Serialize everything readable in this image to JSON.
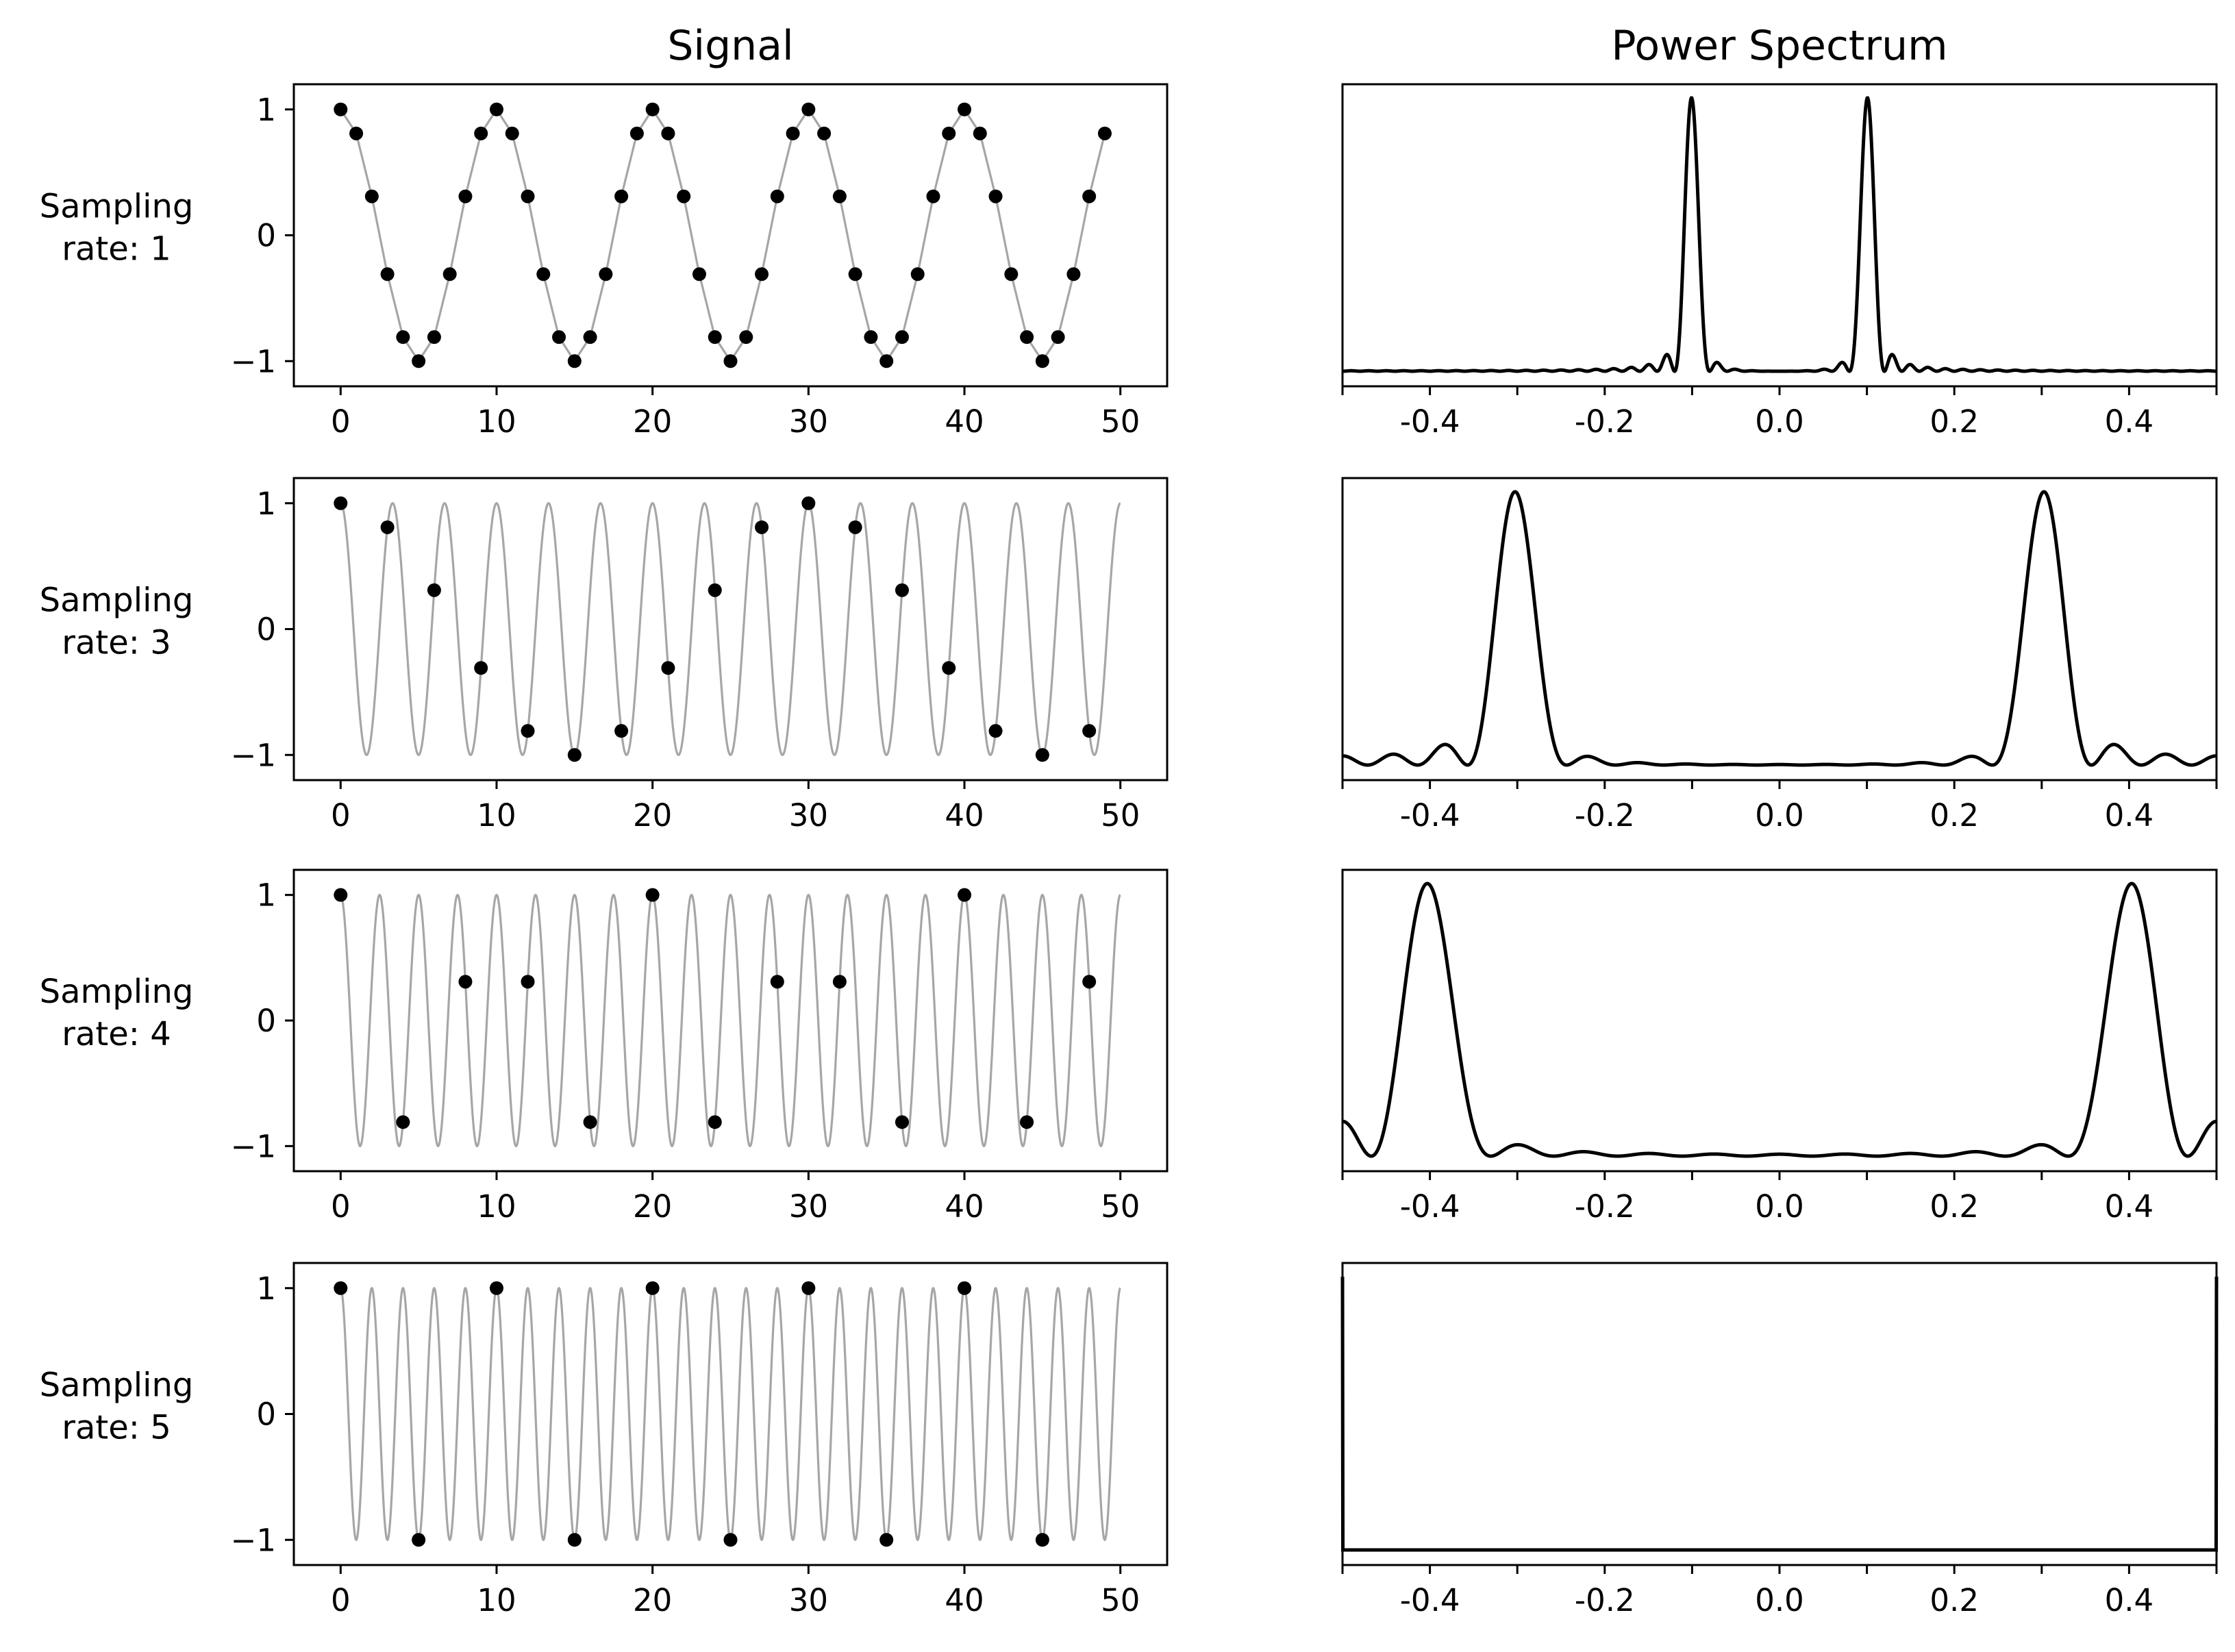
{
  "chart_data": [
    {
      "type": "line",
      "panel": "signal",
      "title": "Signal",
      "row_label": [
        "Sampling",
        "rate: 1"
      ],
      "sampling_rate": 1,
      "xlim": [
        -3,
        53
      ],
      "ylim": [
        -1.2,
        1.2
      ],
      "xticks": [
        0,
        10,
        20,
        30,
        40,
        50
      ],
      "yticks": [
        -1,
        0,
        1
      ],
      "continuous_signal": {
        "function": "cos(2*pi*0.1*t)",
        "t_range": [
          0,
          50
        ],
        "color": "#a6a6a6"
      },
      "samples": {
        "t": [
          0,
          1,
          2,
          3,
          4,
          5,
          6,
          7,
          8,
          9,
          10,
          11,
          12,
          13,
          14,
          15,
          16,
          17,
          18,
          19,
          20,
          21,
          22,
          23,
          24,
          25,
          26,
          27,
          28,
          29,
          30,
          31,
          32,
          33,
          34,
          35,
          36,
          37,
          38,
          39,
          40,
          41,
          42,
          43,
          44,
          45,
          46,
          47,
          48,
          49
        ],
        "color": "#000000"
      }
    },
    {
      "type": "line",
      "panel": "spectrum",
      "title": "Power Spectrum",
      "sampling_rate": 1,
      "xlim": [
        -0.5,
        0.5
      ],
      "xticks": [
        -0.4,
        -0.2,
        0.0,
        0.2,
        0.4
      ],
      "xtick_labels": [
        "-0.4",
        "-0.2",
        "0.0",
        "0.2",
        "0.4"
      ],
      "peaks_at": [
        -0.1,
        0.1
      ],
      "color": "#000000"
    },
    {
      "type": "line",
      "panel": "signal",
      "row_label": [
        "Sampling",
        "rate: 3"
      ],
      "sampling_rate": 3,
      "xlim": [
        -3,
        53
      ],
      "ylim": [
        -1.2,
        1.2
      ],
      "xticks": [
        0,
        10,
        20,
        30,
        40,
        50
      ],
      "yticks": [
        -1,
        0,
        1
      ],
      "continuous_signal": {
        "function": "cos(2*pi*0.3*t)",
        "t_range": [
          0,
          50
        ],
        "color": "#a6a6a6"
      },
      "samples": {
        "t": [
          0,
          3,
          6,
          9,
          12,
          15,
          18,
          21,
          24,
          27,
          30,
          33,
          36,
          39,
          42,
          45,
          48
        ],
        "color": "#000000"
      }
    },
    {
      "type": "line",
      "panel": "spectrum",
      "sampling_rate": 3,
      "xlim": [
        -0.5,
        0.5
      ],
      "xticks": [
        -0.4,
        -0.2,
        0.0,
        0.2,
        0.4
      ],
      "xtick_labels": [
        "-0.4",
        "-0.2",
        "0.0",
        "0.2",
        "0.4"
      ],
      "peaks_at": [
        -0.3,
        0.3
      ],
      "color": "#000000"
    },
    {
      "type": "line",
      "panel": "signal",
      "row_label": [
        "Sampling",
        "rate: 4"
      ],
      "sampling_rate": 4,
      "xlim": [
        -3,
        53
      ],
      "ylim": [
        -1.2,
        1.2
      ],
      "xticks": [
        0,
        10,
        20,
        30,
        40,
        50
      ],
      "yticks": [
        -1,
        0,
        1
      ],
      "continuous_signal": {
        "function": "cos(2*pi*0.4*t)",
        "t_range": [
          0,
          50
        ],
        "color": "#a6a6a6"
      },
      "samples": {
        "t": [
          0,
          4,
          8,
          12,
          16,
          20,
          24,
          28,
          32,
          36,
          40,
          44,
          48
        ],
        "color": "#000000"
      }
    },
    {
      "type": "line",
      "panel": "spectrum",
      "sampling_rate": 4,
      "xlim": [
        -0.5,
        0.5
      ],
      "xticks": [
        -0.4,
        -0.2,
        0.0,
        0.2,
        0.4
      ],
      "xtick_labels": [
        "-0.4",
        "-0.2",
        "0.0",
        "0.2",
        "0.4"
      ],
      "peaks_at": [
        -0.4,
        0.4
      ],
      "color": "#000000"
    },
    {
      "type": "line",
      "panel": "signal",
      "row_label": [
        "Sampling",
        "rate: 5"
      ],
      "sampling_rate": 5,
      "xlim": [
        -3,
        53
      ],
      "ylim": [
        -1.2,
        1.2
      ],
      "xticks": [
        0,
        10,
        20,
        30,
        40,
        50
      ],
      "yticks": [
        -1,
        0,
        1
      ],
      "continuous_signal": {
        "function": "cos(2*pi*0.5*t)",
        "t_range": [
          0,
          50
        ],
        "color": "#a6a6a6"
      },
      "samples": {
        "t": [
          0,
          5,
          10,
          15,
          20,
          25,
          30,
          35,
          40,
          45
        ],
        "color": "#000000"
      }
    },
    {
      "type": "line",
      "panel": "spectrum",
      "sampling_rate": 5,
      "xlim": [
        -0.5,
        0.5
      ],
      "xticks": [
        -0.4,
        -0.2,
        0.0,
        0.2,
        0.4
      ],
      "xtick_labels": [
        "-0.4",
        "-0.2",
        "0.0",
        "0.2",
        "0.4"
      ],
      "peaks_at": [
        -0.5,
        0.5
      ],
      "color": "#000000"
    }
  ]
}
